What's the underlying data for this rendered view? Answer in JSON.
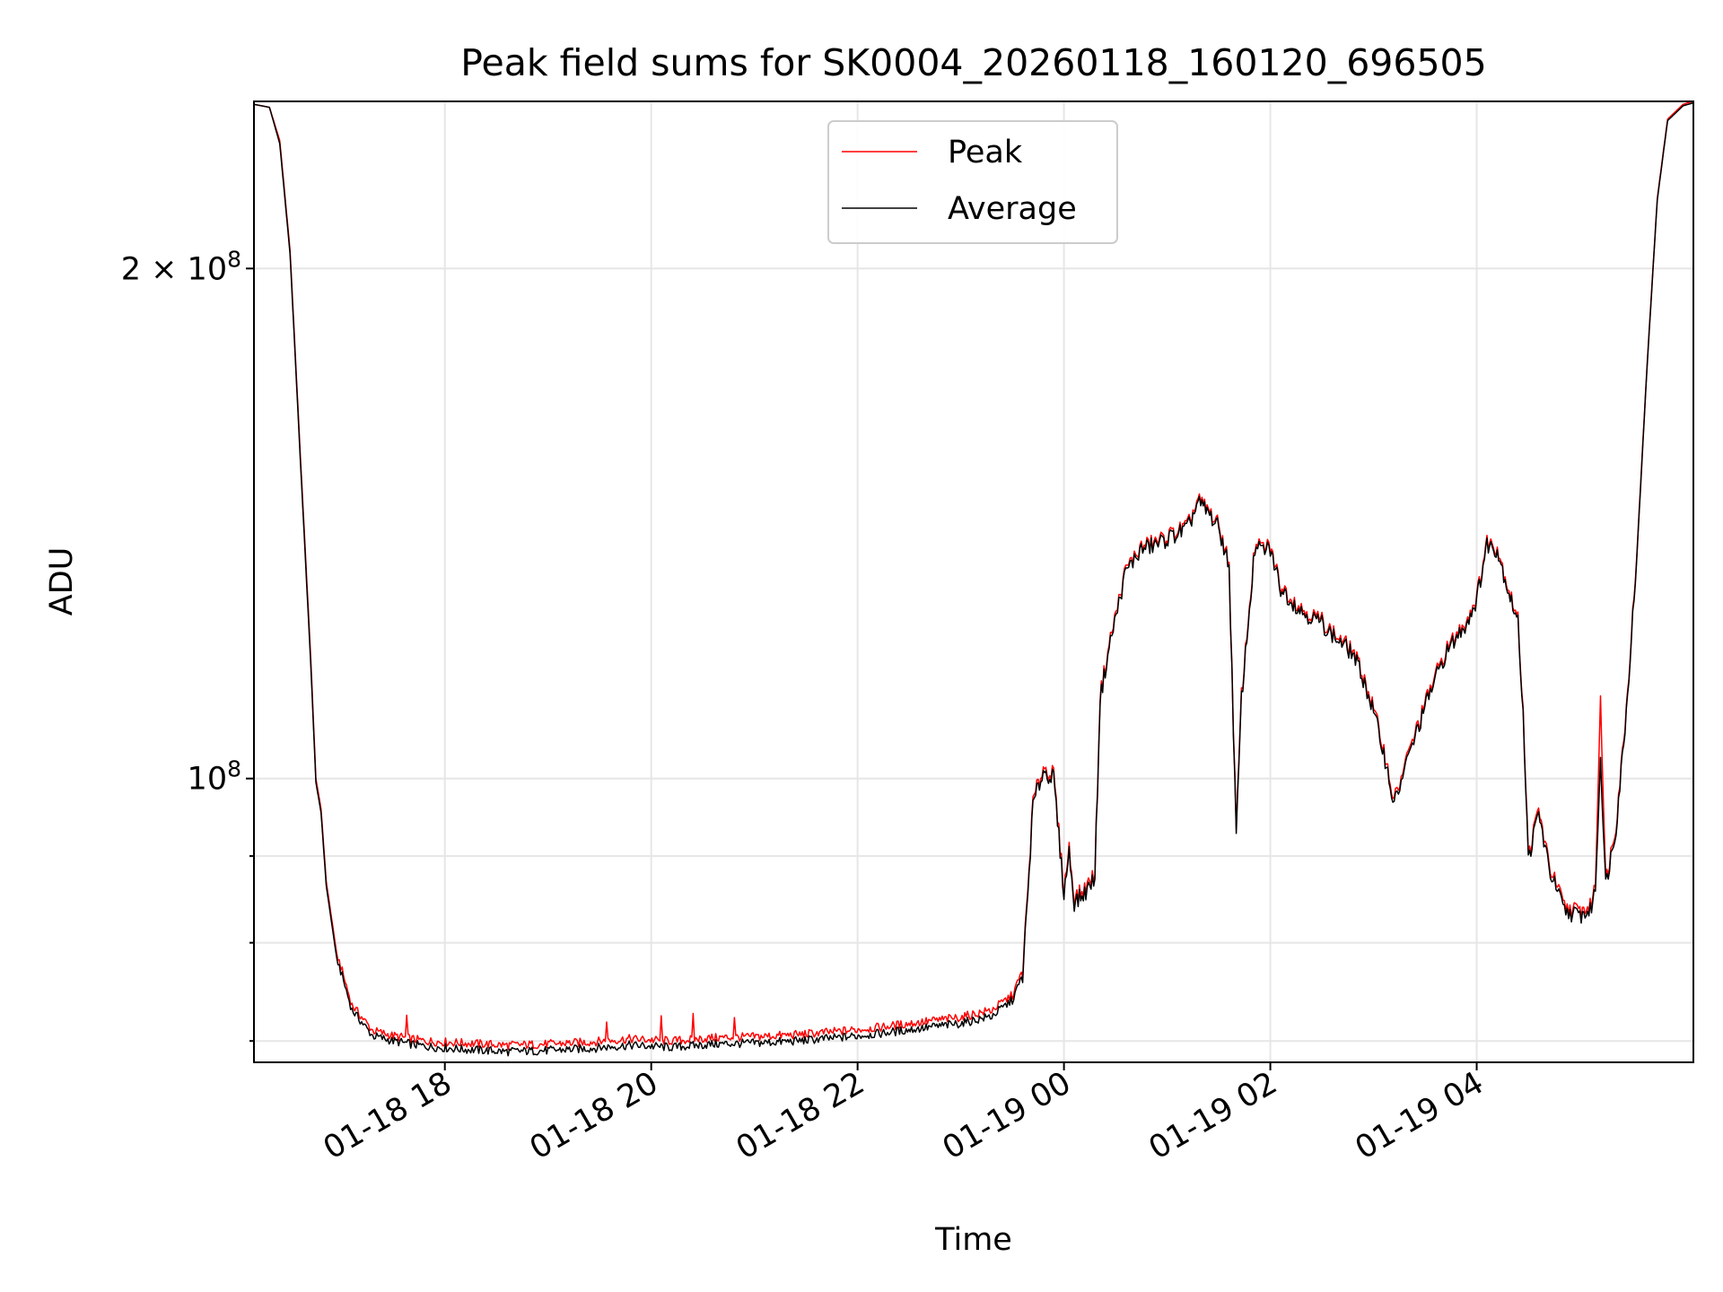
{
  "chart_data": {
    "type": "line",
    "title": "Peak field sums for SK0004_20260118_160120_696505",
    "xlabel": "Time",
    "ylabel": "ADU",
    "yscale": "log",
    "grid": true,
    "legend_position": "top-center",
    "x_unit": "hours since 2026-01-18 16:00",
    "xlim": [
      16.15,
      30.1
    ],
    "ylim": [
      68000000,
      251000000
    ],
    "x_ticks": [
      {
        "value": 18,
        "label": "01-18 18"
      },
      {
        "value": 20,
        "label": "01-18 20"
      },
      {
        "value": 22,
        "label": "01-18 22"
      },
      {
        "value": 24,
        "label": "01-19 00"
      },
      {
        "value": 26,
        "label": "01-19 02"
      },
      {
        "value": 28,
        "label": "01-19 04"
      }
    ],
    "y_major_ticks": [
      {
        "value": 100000000,
        "base": "10",
        "exp": "8",
        "prefix": ""
      },
      {
        "value": 200000000,
        "base": "10",
        "exp": "8",
        "prefix": "2 × "
      }
    ],
    "y_minor_ticks": [
      70000000,
      80000000,
      90000000
    ],
    "series": [
      {
        "name": "Peak",
        "color": "#ff0000",
        "points": [
          [
            16.15,
            250000000
          ],
          [
            16.3,
            249000000
          ],
          [
            16.4,
            238000000
          ],
          [
            16.5,
            205000000
          ],
          [
            16.6,
            155000000
          ],
          [
            16.7,
            118000000
          ],
          [
            16.75,
            100000000
          ],
          [
            16.8,
            96000000
          ],
          [
            16.85,
            87000000
          ],
          [
            16.95,
            79000000
          ],
          [
            17.1,
            73500000
          ],
          [
            17.3,
            71000000
          ],
          [
            17.5,
            70500000
          ],
          [
            17.8,
            70000000
          ],
          [
            18.2,
            69800000
          ],
          [
            18.6,
            69600000
          ],
          [
            19.0,
            69700000
          ],
          [
            19.4,
            69900000
          ],
          [
            19.8,
            70200000
          ],
          [
            20.2,
            70000000
          ],
          [
            20.6,
            70300000
          ],
          [
            21.0,
            70400000
          ],
          [
            21.4,
            70600000
          ],
          [
            21.8,
            70900000
          ],
          [
            22.2,
            71300000
          ],
          [
            22.6,
            71800000
          ],
          [
            23.0,
            72300000
          ],
          [
            23.3,
            73000000
          ],
          [
            23.5,
            74500000
          ],
          [
            23.6,
            77000000
          ],
          [
            23.65,
            86000000
          ],
          [
            23.7,
            97000000
          ],
          [
            23.8,
            101500000
          ],
          [
            23.9,
            100500000
          ],
          [
            24.0,
            86000000
          ],
          [
            24.05,
            91000000
          ],
          [
            24.1,
            85000000
          ],
          [
            24.2,
            86000000
          ],
          [
            24.3,
            88000000
          ],
          [
            24.35,
            112000000
          ],
          [
            24.45,
            121000000
          ],
          [
            24.6,
            133000000
          ],
          [
            24.75,
            137000000
          ],
          [
            24.9,
            138000000
          ],
          [
            25.1,
            140000000
          ],
          [
            25.2,
            141000000
          ],
          [
            25.3,
            146000000
          ],
          [
            25.4,
            144000000
          ],
          [
            25.5,
            141000000
          ],
          [
            25.6,
            134000000
          ],
          [
            25.67,
            93000000
          ],
          [
            25.72,
            112000000
          ],
          [
            25.85,
            137000000
          ],
          [
            26.0,
            137000000
          ],
          [
            26.1,
            130000000
          ],
          [
            26.3,
            126000000
          ],
          [
            26.5,
            124000000
          ],
          [
            26.6,
            122000000
          ],
          [
            26.8,
            119000000
          ],
          [
            26.9,
            115000000
          ],
          [
            27.0,
            110000000
          ],
          [
            27.1,
            104000000
          ],
          [
            27.2,
            97000000
          ],
          [
            27.35,
            104000000
          ],
          [
            27.55,
            113000000
          ],
          [
            27.7,
            119000000
          ],
          [
            27.9,
            124000000
          ],
          [
            28.0,
            128000000
          ],
          [
            28.1,
            138000000
          ],
          [
            28.2,
            137000000
          ],
          [
            28.3,
            130000000
          ],
          [
            28.4,
            124000000
          ],
          [
            28.45,
            110000000
          ],
          [
            28.5,
            90000000
          ],
          [
            28.6,
            96000000
          ],
          [
            28.7,
            89000000
          ],
          [
            28.85,
            84000000
          ],
          [
            29.0,
            83500000
          ],
          [
            29.1,
            84000000
          ],
          [
            29.15,
            86500000
          ],
          [
            29.2,
            112000000
          ],
          [
            29.25,
            87000000
          ],
          [
            29.35,
            94000000
          ],
          [
            29.45,
            110000000
          ],
          [
            29.55,
            135000000
          ],
          [
            29.65,
            175000000
          ],
          [
            29.75,
            220000000
          ],
          [
            29.85,
            245000000
          ],
          [
            30.0,
            250000000
          ],
          [
            30.1,
            251000000
          ]
        ]
      },
      {
        "name": "Average",
        "color": "#000000",
        "points": [
          [
            16.15,
            250000000
          ],
          [
            16.3,
            249000000
          ],
          [
            16.4,
            237000000
          ],
          [
            16.5,
            204000000
          ],
          [
            16.6,
            154000000
          ],
          [
            16.7,
            117000000
          ],
          [
            16.75,
            99500000
          ],
          [
            16.8,
            95500000
          ],
          [
            16.85,
            86500000
          ],
          [
            16.95,
            78500000
          ],
          [
            17.1,
            73000000
          ],
          [
            17.3,
            70500000
          ],
          [
            17.5,
            70000000
          ],
          [
            17.8,
            69500000
          ],
          [
            18.2,
            69200000
          ],
          [
            18.6,
            69000000
          ],
          [
            19.0,
            69100000
          ],
          [
            19.4,
            69300000
          ],
          [
            19.8,
            69600000
          ],
          [
            20.2,
            69400000
          ],
          [
            20.6,
            69700000
          ],
          [
            21.0,
            69800000
          ],
          [
            21.4,
            70000000
          ],
          [
            21.8,
            70300000
          ],
          [
            22.2,
            70700000
          ],
          [
            22.6,
            71200000
          ],
          [
            23.0,
            71700000
          ],
          [
            23.3,
            72400000
          ],
          [
            23.5,
            74000000
          ],
          [
            23.6,
            76500000
          ],
          [
            23.65,
            85500000
          ],
          [
            23.7,
            96500000
          ],
          [
            23.8,
            101000000
          ],
          [
            23.9,
            100000000
          ],
          [
            24.0,
            85500000
          ],
          [
            24.05,
            90500000
          ],
          [
            24.1,
            84500000
          ],
          [
            24.2,
            85500000
          ],
          [
            24.3,
            87500000
          ],
          [
            24.35,
            111500000
          ],
          [
            24.45,
            120500000
          ],
          [
            24.6,
            132500000
          ],
          [
            24.75,
            136500000
          ],
          [
            24.9,
            137500000
          ],
          [
            25.1,
            139500000
          ],
          [
            25.2,
            140500000
          ],
          [
            25.3,
            145500000
          ],
          [
            25.4,
            143500000
          ],
          [
            25.5,
            140500000
          ],
          [
            25.6,
            133500000
          ],
          [
            25.67,
            92500000
          ],
          [
            25.72,
            111500000
          ],
          [
            25.85,
            136500000
          ],
          [
            26.0,
            136500000
          ],
          [
            26.1,
            129500000
          ],
          [
            26.3,
            125500000
          ],
          [
            26.5,
            123500000
          ],
          [
            26.6,
            121500000
          ],
          [
            26.8,
            118500000
          ],
          [
            26.9,
            114500000
          ],
          [
            27.0,
            109500000
          ],
          [
            27.1,
            103500000
          ],
          [
            27.2,
            96500000
          ],
          [
            27.35,
            103500000
          ],
          [
            27.55,
            112500000
          ],
          [
            27.7,
            118500000
          ],
          [
            27.9,
            123500000
          ],
          [
            28.0,
            127500000
          ],
          [
            28.1,
            137500000
          ],
          [
            28.2,
            136500000
          ],
          [
            28.3,
            129500000
          ],
          [
            28.4,
            123500000
          ],
          [
            28.45,
            109500000
          ],
          [
            28.5,
            89500000
          ],
          [
            28.6,
            95500000
          ],
          [
            28.7,
            88500000
          ],
          [
            28.85,
            83500000
          ],
          [
            29.0,
            83000000
          ],
          [
            29.1,
            83500000
          ],
          [
            29.15,
            86000000
          ],
          [
            29.2,
            103000000
          ],
          [
            29.25,
            86500000
          ],
          [
            29.35,
            93500000
          ],
          [
            29.45,
            109500000
          ],
          [
            29.55,
            134500000
          ],
          [
            29.65,
            174500000
          ],
          [
            29.75,
            219500000
          ],
          [
            29.85,
            244500000
          ],
          [
            30.0,
            249500000
          ],
          [
            30.1,
            250500000
          ]
        ]
      }
    ]
  }
}
